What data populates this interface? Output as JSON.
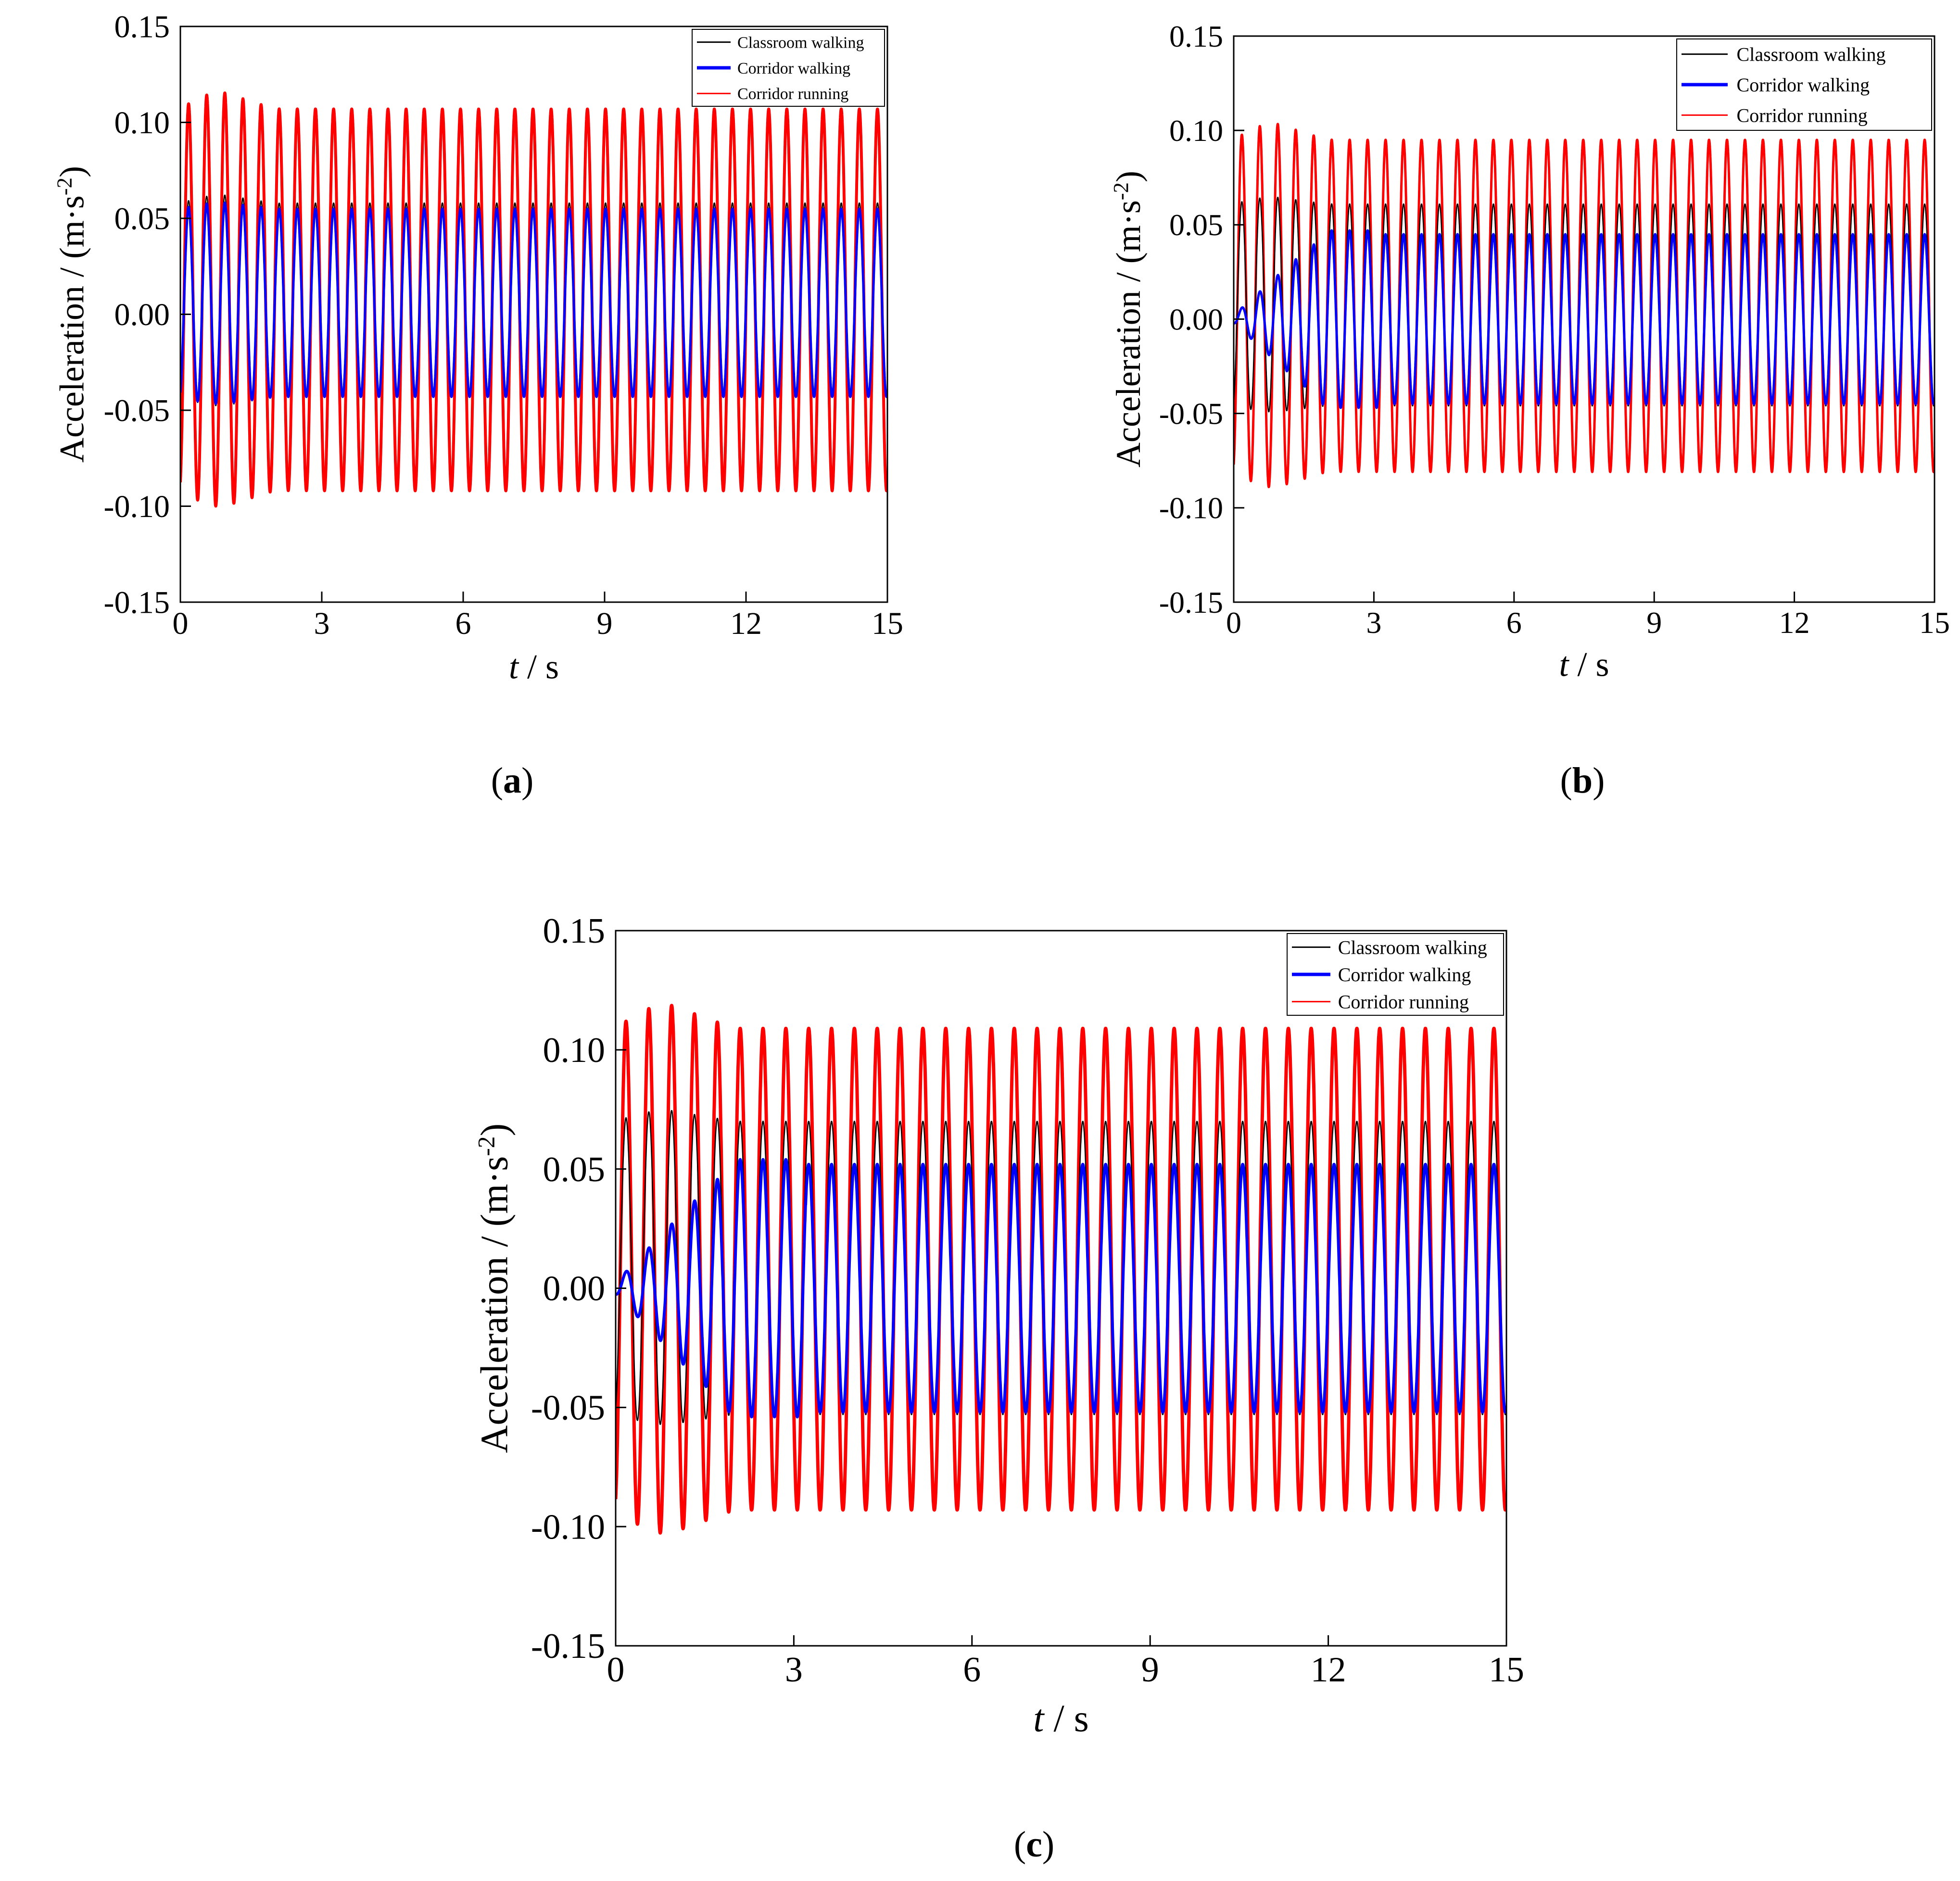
{
  "figure": {
    "panel_captions": [
      "(a)",
      "(b)",
      "(c)"
    ]
  },
  "series_colors": {
    "Classroom walking": "#000000",
    "Corridor walking": "#0000ff",
    "Corridor running": "#ff0000"
  },
  "chart_data": [
    {
      "id": "a",
      "type": "line",
      "caption": "(a)",
      "title": "",
      "xlabel_italic": "t",
      "xlabel_rest": " / s",
      "ylabel": "Acceleration / (m·s",
      "ylabel_sup": "-2",
      "ylabel_close": ")",
      "xlim": [
        0,
        15
      ],
      "ylim": [
        -0.15,
        0.15
      ],
      "xticks": [
        "0",
        "3",
        "6",
        "9",
        "12",
        "15"
      ],
      "yticks": [
        "0.15",
        "0.10",
        "0.05",
        "0.00",
        "-0.05",
        "-0.10",
        "-0.15"
      ],
      "legend": [
        "Classroom walking",
        "Corridor walking",
        "Corridor running"
      ],
      "legend_position": "top-right",
      "grid": false,
      "series": [
        {
          "name": "Classroom walking",
          "color": "#000000",
          "frequency_hz": 2.6,
          "steady_max": 0.058,
          "steady_min": -0.043,
          "peak_max": 0.062,
          "peak_min": -0.048,
          "ramp_time_s": 0.0
        },
        {
          "name": "Corridor walking",
          "color": "#0000ff",
          "frequency_hz": 2.6,
          "steady_max": 0.055,
          "steady_min": -0.043,
          "peak_max": 0.058,
          "peak_min": -0.047,
          "ramp_time_s": 0.0
        },
        {
          "name": "Corridor running",
          "color": "#ff0000",
          "frequency_hz": 2.6,
          "steady_max": 0.107,
          "steady_min": -0.092,
          "peak_max": 0.116,
          "peak_min": -0.1,
          "ramp_time_s": 0.0
        }
      ]
    },
    {
      "id": "b",
      "type": "line",
      "caption": "(b)",
      "title": "",
      "xlabel_italic": "t",
      "xlabel_rest": " / s",
      "ylabel": "Acceleration / (m·s",
      "ylabel_sup": "-2",
      "ylabel_close": ")",
      "xlim": [
        0,
        15
      ],
      "ylim": [
        -0.15,
        0.15
      ],
      "xticks": [
        "0",
        "3",
        "6",
        "9",
        "12",
        "15"
      ],
      "yticks": [
        "0.15",
        "0.10",
        "0.05",
        "0.00",
        "-0.05",
        "-0.10",
        "-0.15"
      ],
      "legend": [
        "Classroom walking",
        "Corridor walking",
        "Corridor running"
      ],
      "legend_position": "top-right",
      "grid": false,
      "series": [
        {
          "name": "Classroom walking",
          "color": "#000000",
          "frequency_hz": 2.6,
          "steady_max": 0.061,
          "steady_min": -0.046,
          "peak_max": 0.065,
          "peak_min": -0.049,
          "ramp_time_s": 0.0
        },
        {
          "name": "Corridor walking",
          "color": "#0000ff",
          "frequency_hz": 2.6,
          "steady_max": 0.045,
          "steady_min": -0.045,
          "peak_max": 0.047,
          "peak_min": -0.047,
          "ramp_time_s": 2.0
        },
        {
          "name": "Corridor running",
          "color": "#ff0000",
          "frequency_hz": 2.6,
          "steady_max": 0.095,
          "steady_min": -0.081,
          "peak_max": 0.104,
          "peak_min": -0.089,
          "ramp_time_s": 0.0
        }
      ]
    },
    {
      "id": "c",
      "type": "line",
      "caption": "(c)",
      "title": "",
      "xlabel_italic": "t",
      "xlabel_rest": " / s",
      "ylabel": "Acceleration / (m·s",
      "ylabel_sup": "-2",
      "ylabel_close": ")",
      "xlim": [
        0,
        15
      ],
      "ylim": [
        -0.15,
        0.15
      ],
      "xticks": [
        "0",
        "3",
        "6",
        "9",
        "12",
        "15"
      ],
      "yticks": [
        "0.15",
        "0.10",
        "0.05",
        "0.00",
        "-0.05",
        "-0.10",
        "-0.15"
      ],
      "legend": [
        "Classroom walking",
        "Corridor walking",
        "Corridor running"
      ],
      "legend_position": "top-right",
      "grid": false,
      "series": [
        {
          "name": "Classroom walking",
          "color": "#000000",
          "frequency_hz": 2.6,
          "steady_max": 0.07,
          "steady_min": -0.053,
          "peak_max": 0.075,
          "peak_min": -0.057,
          "ramp_time_s": 0.0
        },
        {
          "name": "Corridor walking",
          "color": "#0000ff",
          "frequency_hz": 2.6,
          "steady_max": 0.052,
          "steady_min": -0.052,
          "peak_max": 0.054,
          "peak_min": -0.054,
          "ramp_time_s": 2.0
        },
        {
          "name": "Corridor running",
          "color": "#ff0000",
          "frequency_hz": 2.6,
          "steady_max": 0.109,
          "steady_min": -0.093,
          "peak_max": 0.119,
          "peak_min": -0.103,
          "ramp_time_s": 0.0
        }
      ]
    }
  ]
}
